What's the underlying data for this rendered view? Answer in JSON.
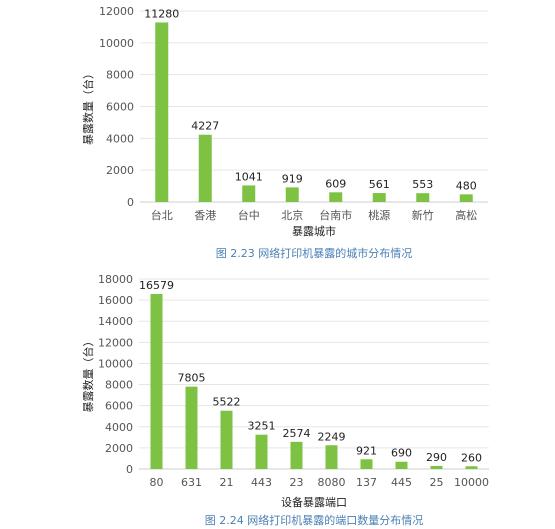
{
  "chart_data": [
    {
      "type": "bar",
      "categories": [
        "台北",
        "香港",
        "台中",
        "北京",
        "台南市",
        "桃源",
        "新竹",
        "高松"
      ],
      "values": [
        11280,
        4227,
        1041,
        919,
        609,
        561,
        553,
        480
      ],
      "xlabel": "暴露城市",
      "ylabel": "暴露数量（台）",
      "ylim": [
        0,
        12000
      ],
      "yticks": [
        0,
        2000,
        4000,
        6000,
        8000,
        10000,
        12000
      ],
      "caption": "图 2.23  网络打印机暴露的城市分布情况",
      "grid": true,
      "bar_color": "#7dc242"
    },
    {
      "type": "bar",
      "categories": [
        "80",
        "631",
        "21",
        "443",
        "23",
        "8080",
        "137",
        "445",
        "25",
        "10000"
      ],
      "values": [
        16579,
        7805,
        5522,
        3251,
        2574,
        2249,
        921,
        690,
        290,
        260
      ],
      "xlabel": "设备暴露端口",
      "ylabel": "暴露数量（台）",
      "ylim": [
        0,
        18000
      ],
      "yticks": [
        0,
        2000,
        4000,
        6000,
        8000,
        10000,
        12000,
        14000,
        16000,
        18000
      ],
      "caption": "图 2.24  网络打印机暴露的端口数量分布情况",
      "grid": true,
      "bar_color": "#7dc242"
    }
  ]
}
